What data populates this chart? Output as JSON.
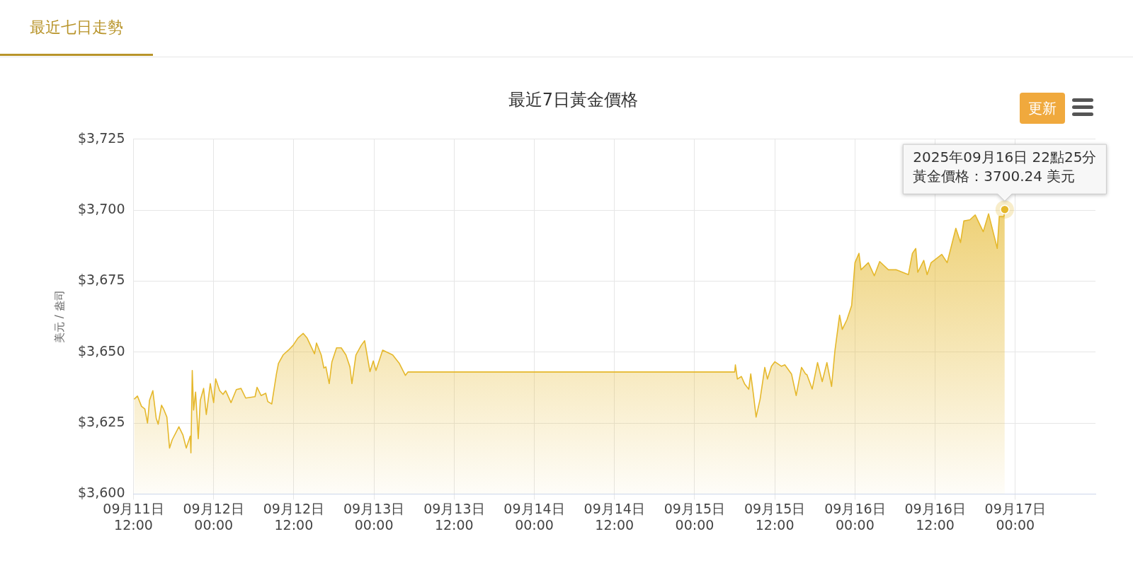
{
  "chart_data": {
    "type": "area",
    "title": "最近7日黃金價格",
    "subtitle": "最近七日走勢",
    "ylabel": "美元 / 盎司",
    "annotations": [
      "更新",
      "2025年09月16日 22點25分",
      {
        "text": "黃金價格：3700.24 美元",
        "x": "2025-09-16T22:25",
        "y": 3700.24
      }
    ],
    "x": [
      "2025-09-11T12:06",
      "2025-09-11T12:36",
      "2025-09-11T13:12",
      "2025-09-11T13:42",
      "2025-09-11T14:06",
      "2025-09-11T14:24",
      "2025-09-11T14:54",
      "2025-09-11T15:24",
      "2025-09-11T15:42",
      "2025-09-11T16:12",
      "2025-09-11T16:30",
      "2025-09-11T17:00",
      "2025-09-11T17:24",
      "2025-09-11T17:48",
      "2025-09-11T18:48",
      "2025-09-11T19:24",
      "2025-09-11T19:54",
      "2025-09-11T20:30",
      "2025-09-11T20:36",
      "2025-09-11T20:48",
      "2025-09-11T21:00",
      "2025-09-11T21:18",
      "2025-09-11T21:42",
      "2025-09-11T22:00",
      "2025-09-11T22:30",
      "2025-09-11T22:54",
      "2025-09-11T23:30",
      "2025-09-12T00:00",
      "2025-09-12T00:18",
      "2025-09-12T00:54",
      "2025-09-12T01:24",
      "2025-09-12T01:48",
      "2025-09-12T02:36",
      "2025-09-12T03:24",
      "2025-09-12T04:06",
      "2025-09-12T04:48",
      "2025-09-12T06:12",
      "2025-09-12T06:30",
      "2025-09-12T07:06",
      "2025-09-12T07:48",
      "2025-09-12T08:06",
      "2025-09-12T08:42",
      "2025-09-12T09:24",
      "2025-09-12T09:42",
      "2025-09-12T10:24",
      "2025-09-12T11:12",
      "2025-09-12T11:54",
      "2025-09-12T12:36",
      "2025-09-12T13:24",
      "2025-09-12T14:00",
      "2025-09-12T15:06",
      "2025-09-12T15:24",
      "2025-09-12T16:06",
      "2025-09-12T16:30",
      "2025-09-12T16:48",
      "2025-09-12T17:18",
      "2025-09-12T17:42",
      "2025-09-12T18:24",
      "2025-09-12T19:06",
      "2025-09-12T19:48",
      "2025-09-12T20:24",
      "2025-09-12T20:42",
      "2025-09-12T21:18",
      "2025-09-12T22:06",
      "2025-09-12T22:36",
      "2025-09-12T23:24",
      "2025-09-12T23:54",
      "2025-09-13T00:18",
      "2025-09-13T01:18",
      "2025-09-13T02:48",
      "2025-09-13T03:48",
      "2025-09-13T04:42",
      "2025-09-13T05:06",
      "2025-09-15T06:00",
      "2025-09-15T06:06",
      "2025-09-15T06:24",
      "2025-09-15T07:00",
      "2025-09-15T07:30",
      "2025-09-15T08:06",
      "2025-09-15T08:24",
      "2025-09-15T08:48",
      "2025-09-15T09:12",
      "2025-09-15T09:48",
      "2025-09-15T10:30",
      "2025-09-15T10:54",
      "2025-09-15T11:30",
      "2025-09-15T12:00",
      "2025-09-15T13:00",
      "2025-09-15T13:30",
      "2025-09-15T14:30",
      "2025-09-15T15:12",
      "2025-09-15T16:00",
      "2025-09-15T16:36",
      "2025-09-15T16:48",
      "2025-09-15T17:36",
      "2025-09-15T18:24",
      "2025-09-15T19:06",
      "2025-09-15T19:48",
      "2025-09-15T20:30",
      "2025-09-15T21:00",
      "2025-09-15T21:42",
      "2025-09-15T22:06",
      "2025-09-15T22:48",
      "2025-09-15T23:30",
      "2025-09-16T00:00",
      "2025-09-16T00:36",
      "2025-09-16T00:54",
      "2025-09-16T02:00",
      "2025-09-16T02:54",
      "2025-09-16T03:42",
      "2025-09-16T05:00",
      "2025-09-16T06:12",
      "2025-09-16T08:00",
      "2025-09-16T08:36",
      "2025-09-16T09:06",
      "2025-09-16T09:24",
      "2025-09-16T10:18",
      "2025-09-16T10:48",
      "2025-09-16T11:24",
      "2025-09-16T13:00",
      "2025-09-16T13:48",
      "2025-09-16T15:06",
      "2025-09-16T15:48",
      "2025-09-16T16:18",
      "2025-09-16T17:12",
      "2025-09-16T18:00",
      "2025-09-16T19:12",
      "2025-09-16T20:00",
      "2025-09-16T21:18",
      "2025-09-16T21:36",
      "2025-09-16T22:18",
      "2025-09-16T22:25"
    ],
    "series": [
      {
        "color": "#e5b82c",
        "values": [
          3633.4,
          3634.5,
          3630.9,
          3630,
          3625,
          3633,
          3636.4,
          3626.7,
          3624.6,
          3631.3,
          3630,
          3627.1,
          3616.2,
          3619.1,
          3623.7,
          3620.8,
          3616.2,
          3620.4,
          3614.5,
          3643.5,
          3629.6,
          3635.9,
          3619.5,
          3633,
          3637.2,
          3628,
          3638.9,
          3632.2,
          3640.6,
          3636.4,
          3635.1,
          3636.4,
          3632.2,
          3636.8,
          3637.2,
          3633.8,
          3634.3,
          3637.6,
          3634.7,
          3635.5,
          3632.6,
          3631.7,
          3642.3,
          3646,
          3649,
          3650.7,
          3652.4,
          3654.9,
          3656.6,
          3654.9,
          3649.4,
          3653.2,
          3649,
          3644.4,
          3644.8,
          3638.9,
          3646.5,
          3651.5,
          3651.5,
          3649,
          3644.8,
          3638.9,
          3649,
          3652.4,
          3654,
          3643.1,
          3646.9,
          3643.5,
          3650.7,
          3649,
          3646,
          3641.8,
          3643,
          3643,
          3645.5,
          3640.5,
          3641.4,
          3638.7,
          3636.9,
          3642.3,
          3635.1,
          3627.1,
          3633.4,
          3644.6,
          3640.5,
          3645,
          3646.6,
          3645,
          3645.5,
          3642.3,
          3634.7,
          3644.6,
          3642.3,
          3642.1,
          3637,
          3646.3,
          3639.6,
          3646.3,
          3637.9,
          3650.5,
          3663,
          3658,
          3661.4,
          3666.4,
          3681.5,
          3684.8,
          3679,
          3681.5,
          3676.9,
          3681.9,
          3679,
          3679,
          3677.3,
          3684.8,
          3686.5,
          3678.1,
          3682.3,
          3677.3,
          3681.5,
          3684.4,
          3681.5,
          3693.6,
          3688.6,
          3696.2,
          3696.6,
          3698.3,
          3692.4,
          3698.7,
          3686.5,
          3697.8,
          3697.8,
          3700.24
        ]
      }
    ],
    "xlim": [
      "2025-09-11T12:00",
      "2025-09-17T12:00"
    ],
    "xticks": [
      {
        "value": "2025-09-11T12:00",
        "label": "09月11日\n12:00"
      },
      {
        "value": "2025-09-12T00:00",
        "label": "09月12日\n00:00"
      },
      {
        "value": "2025-09-12T12:00",
        "label": "09月12日\n12:00"
      },
      {
        "value": "2025-09-13T00:00",
        "label": "09月13日\n00:00"
      },
      {
        "value": "2025-09-13T12:00",
        "label": "09月13日\n12:00"
      },
      {
        "value": "2025-09-14T00:00",
        "label": "09月14日\n00:00"
      },
      {
        "value": "2025-09-14T12:00",
        "label": "09月14日\n12:00"
      },
      {
        "value": "2025-09-15T00:00",
        "label": "09月15日\n00:00"
      },
      {
        "value": "2025-09-15T12:00",
        "label": "09月15日\n12:00"
      },
      {
        "value": "2025-09-16T00:00",
        "label": "09月16日\n00:00"
      },
      {
        "value": "2025-09-16T12:00",
        "label": "09月16日\n12:00"
      },
      {
        "value": "2025-09-17T00:00",
        "label": "09月17日\n00:00"
      }
    ],
    "ylim": [
      3600,
      3725
    ],
    "yticks": [
      {
        "value": 3600,
        "label": "$3,600"
      },
      {
        "value": 3625,
        "label": "$3,625"
      },
      {
        "value": 3650,
        "label": "$3,650"
      },
      {
        "value": 3675,
        "label": "$3,675"
      },
      {
        "value": 3700,
        "label": "$3,700"
      },
      {
        "value": 3725,
        "label": "$3,725"
      }
    ],
    "grid": true,
    "legend": false,
    "marker": "none",
    "line_style": "solid"
  }
}
